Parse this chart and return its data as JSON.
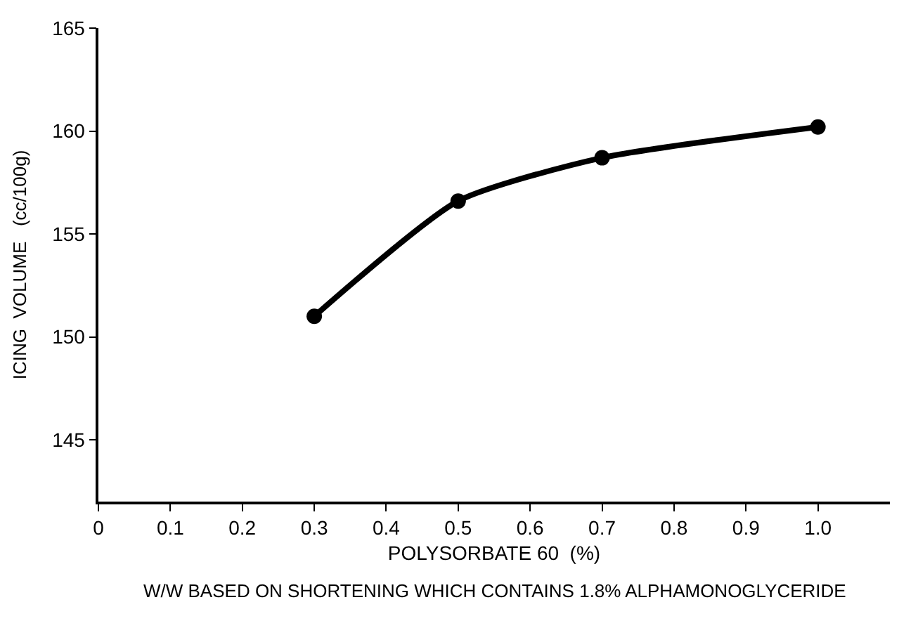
{
  "chart_data": {
    "type": "line",
    "xlabel": "POLYSORBATE 60  (%)",
    "ylabel": "ICING  VOLUME   (cc/100g)",
    "annotations": [
      "W/W BASED ON SHORTENING WHICH CONTAINS 1.8% ALPHAMONOGLYCERIDE"
    ],
    "x": [
      0.3,
      0.5,
      0.7,
      1.0
    ],
    "series": [
      {
        "color": "#000000",
        "values": [
          151.0,
          156.6,
          158.7,
          160.2
        ]
      }
    ],
    "xlim": [
      0,
      1.1
    ],
    "xticks": [
      0,
      0.1,
      0.2,
      0.3,
      0.4,
      0.5,
      0.6,
      0.7,
      0.8,
      0.9,
      {
        "value": 1.0,
        "label": "1.0"
      }
    ],
    "ylim": [
      142,
      165
    ],
    "yticks": [
      145,
      150,
      155,
      160,
      165
    ],
    "legend": false,
    "marker": "circle",
    "line_style": "solid"
  }
}
